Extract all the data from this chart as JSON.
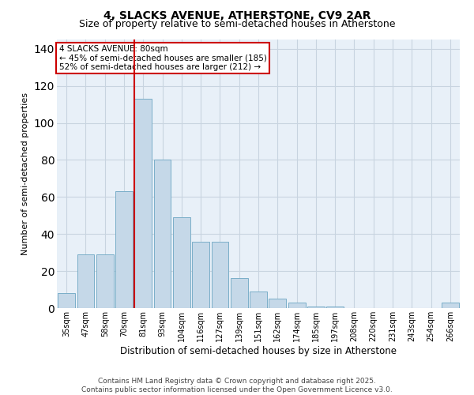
{
  "title": "4, SLACKS AVENUE, ATHERSTONE, CV9 2AR",
  "subtitle": "Size of property relative to semi-detached houses in Atherstone",
  "xlabel": "Distribution of semi-detached houses by size in Atherstone",
  "ylabel": "Number of semi-detached properties",
  "categories": [
    "35sqm",
    "47sqm",
    "58sqm",
    "70sqm",
    "81sqm",
    "93sqm",
    "104sqm",
    "116sqm",
    "127sqm",
    "139sqm",
    "151sqm",
    "162sqm",
    "174sqm",
    "185sqm",
    "197sqm",
    "208sqm",
    "220sqm",
    "231sqm",
    "243sqm",
    "254sqm",
    "266sqm"
  ],
  "values": [
    8,
    29,
    29,
    63,
    113,
    80,
    49,
    36,
    36,
    16,
    9,
    5,
    3,
    1,
    1,
    0,
    0,
    0,
    0,
    0,
    3
  ],
  "bar_color": "#c5d8e8",
  "bar_edge_color": "#7aaec8",
  "highlight_index": 4,
  "vline_color": "#cc0000",
  "annotation_title": "4 SLACKS AVENUE: 80sqm",
  "annotation_line2": "← 45% of semi-detached houses are smaller (185)",
  "annotation_line3": "52% of semi-detached houses are larger (212) →",
  "annotation_box_color": "#cc0000",
  "ylim": [
    0,
    145
  ],
  "yticks": [
    0,
    20,
    40,
    60,
    80,
    100,
    120,
    140
  ],
  "grid_color": "#c8d4e0",
  "bg_color": "#e8f0f8",
  "footer": "Contains HM Land Registry data © Crown copyright and database right 2025.\nContains public sector information licensed under the Open Government Licence v3.0.",
  "title_fontsize": 10,
  "subtitle_fontsize": 9,
  "xlabel_fontsize": 8.5,
  "ylabel_fontsize": 8,
  "tick_fontsize": 7,
  "footer_fontsize": 6.5,
  "ann_fontsize": 7.5
}
